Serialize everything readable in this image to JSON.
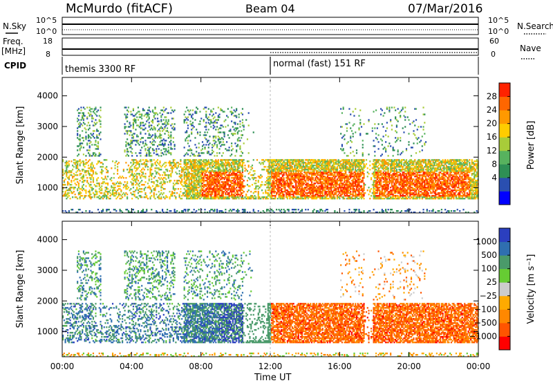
{
  "header": {
    "station": "McMurdo (fitACF)",
    "beam": "Beam 04",
    "date": "07/Mar/2016"
  },
  "strips": {
    "nsky_label": "N.Sky",
    "nsky_ticks": [
      "10^5",
      "10^0"
    ],
    "nsearch_label": "N.Search",
    "nsearch_ticks": [
      "10^5",
      "10^0"
    ],
    "freq_label": "Freq.",
    "freq_unit": "[MHz]",
    "freq_ticks": [
      "18",
      "8"
    ],
    "nave_label": "Nave",
    "nave_ticks": [
      "60",
      "0"
    ],
    "cpid_label": "CPID",
    "cpid_segments": [
      {
        "label": "themis 3300 RF",
        "start_h": 0,
        "end_h": 12
      },
      {
        "label": "normal (fast) 151 RF",
        "start_h": 12,
        "end_h": 24
      }
    ]
  },
  "chart_data": [
    {
      "type": "heatmap",
      "title": "",
      "xlabel": "Time UT",
      "ylabel": "Slant Range [km]",
      "xlim": [
        0,
        24
      ],
      "ylim": [
        180,
        4600
      ],
      "x_ticks": [
        "00:00",
        "04:00",
        "08:00",
        "12:00",
        "16:00",
        "20:00",
        "00:00"
      ],
      "y_ticks": [
        1000,
        2000,
        3000,
        4000
      ],
      "colorbar": {
        "label": "Power [dB]",
        "ticks": [
          "28",
          "24",
          "20",
          "16",
          "12",
          "8",
          "4"
        ],
        "range": [
          0,
          32
        ],
        "colors": [
          "#0000ff",
          "#2a4fb0",
          "#2e8f55",
          "#57b25e",
          "#a8cc39",
          "#ffcc00",
          "#ff9900",
          "#ff6600",
          "#ff2200"
        ]
      },
      "description_of_structure": {
        "background_band_km": [
          180,
          300
        ],
        "main_echo_band_km": [
          600,
          1900
        ],
        "upper_sporadic_km": [
          2000,
          3600
        ]
      }
    },
    {
      "type": "heatmap",
      "title": "",
      "xlabel": "Time UT",
      "ylabel": "Slant Range [km]",
      "xlim": [
        0,
        24
      ],
      "ylim": [
        180,
        4600
      ],
      "x_ticks": [
        "00:00",
        "04:00",
        "08:00",
        "12:00",
        "16:00",
        "20:00",
        "00:00"
      ],
      "y_ticks": [
        1000,
        2000,
        3000,
        4000
      ],
      "colorbar": {
        "label": "Velocity  [m s⁻¹]",
        "ticks": [
          "1000",
          "500",
          "100",
          "25",
          "−25",
          "−100",
          "−500",
          "−1000"
        ],
        "range": [
          -1200,
          1200
        ],
        "colors": [
          "#ff0000",
          "#ff5500",
          "#ff8800",
          "#ffaa00",
          "#cccccc",
          "#66cc33",
          "#4a9a6a",
          "#2f6fb0",
          "#2b3fbf"
        ]
      }
    }
  ]
}
